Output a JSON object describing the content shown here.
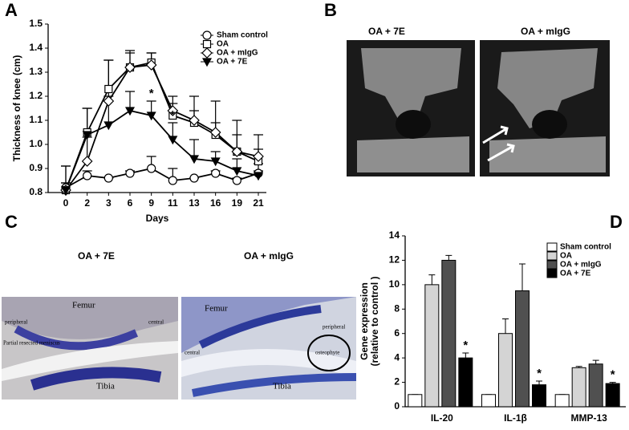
{
  "panel_letters": [
    "A",
    "B",
    "C",
    "D"
  ],
  "images": {
    "b": [
      "OA + 7E",
      "OA + mIgG"
    ],
    "c": {
      "titles": [
        "OA + 7E",
        "OA + mIgG"
      ],
      "left_labels": [
        "Femur",
        "Tibia",
        "peripheral",
        "central",
        "Partial resected meniscus"
      ],
      "right_labels": [
        "Femur",
        "Tibia",
        "peripheral",
        "central",
        "osteophyte"
      ]
    }
  },
  "chart_data": [
    {
      "type": "line",
      "xlabel": "Days",
      "ylabel": "Thickness of knee (cm)",
      "categories": [
        "0",
        "2",
        "3",
        "6",
        "9",
        "11",
        "13",
        "16",
        "19",
        "21"
      ],
      "ylim": [
        0.8,
        1.5
      ],
      "yticks": [
        0.8,
        0.9,
        {
          "value": 1,
          "label": "1.0"
        },
        1.1,
        1.2,
        1.3,
        1.4,
        1.5
      ],
      "legend": "upper right",
      "series": [
        {
          "name": "Sham control",
          "color": "#000000",
          "fill": "#ffffff",
          "marker": "circle",
          "values": [
            0.82,
            0.87,
            0.86,
            0.88,
            0.9,
            0.85,
            0.86,
            0.88,
            0.85,
            0.88
          ],
          "errors": [
            0.09,
            0.02,
            0,
            0.01,
            0.05,
            0.05,
            0,
            0.01,
            0.01,
            0.01
          ]
        },
        {
          "name": "OA",
          "color": "#000000",
          "fill": "#ffffff",
          "marker": "square",
          "values": [
            0.81,
            1.05,
            1.23,
            1.32,
            1.34,
            1.12,
            1.09,
            1.04,
            0.97,
            0.93
          ],
          "errors": [
            0.03,
            0.1,
            0.12,
            0.06,
            0.04,
            0.05,
            0.05,
            0.05,
            0.07,
            0.05
          ]
        },
        {
          "name": "OA + mIgG",
          "color": "#000000",
          "fill": "#ffffff",
          "marker": "diamond",
          "values": [
            0.81,
            0.93,
            1.18,
            1.32,
            1.33,
            1.14,
            1.1,
            1.05,
            0.97,
            0.95
          ],
          "errors": [
            0.03,
            0.1,
            0.17,
            0.07,
            0.05,
            0.06,
            0.1,
            0.13,
            0.13,
            0.09
          ]
        },
        {
          "name": "OA + 7E",
          "color": "#000000",
          "fill": "#000000",
          "marker": "triangle",
          "values": [
            0.81,
            1.04,
            1.08,
            1.14,
            1.12,
            1.02,
            0.94,
            0.93,
            0.89,
            0.87
          ],
          "errors": [
            0.1,
            0.11,
            0.12,
            0.08,
            0.06,
            0.07,
            0.08,
            0.04,
            0.05,
            0.05
          ],
          "annotations": [
            null,
            null,
            null,
            null,
            "*",
            "*",
            null,
            null,
            null,
            null
          ]
        }
      ]
    },
    {
      "type": "bar",
      "ylabel": [
        "Gene expression",
        "(relative to control )"
      ],
      "categories": [
        "IL-20",
        "IL-1β",
        "MMP-13"
      ],
      "ylim": [
        0,
        14
      ],
      "yticks": [
        0,
        2,
        4,
        6,
        8,
        10,
        12,
        14
      ],
      "legend": "upper right",
      "series": [
        {
          "name": "Sham control",
          "color": "#ffffff",
          "values": [
            1,
            1,
            1
          ],
          "errors": [
            0,
            0,
            0
          ]
        },
        {
          "name": "OA",
          "color": "#d4d4d4",
          "values": [
            10,
            6,
            3.2
          ],
          "errors": [
            0.8,
            1.2,
            0.1
          ]
        },
        {
          "name": "OA + mIgG",
          "color": "#505050",
          "values": [
            12,
            9.5,
            3.5
          ],
          "errors": [
            0.4,
            2.2,
            0.3
          ]
        },
        {
          "name": "OA + 7E",
          "color": "#000000",
          "values": [
            4,
            1.8,
            1.9
          ],
          "errors": [
            0.4,
            0.3,
            0.1
          ],
          "annotations": [
            "*",
            "*",
            "*"
          ]
        }
      ]
    }
  ]
}
